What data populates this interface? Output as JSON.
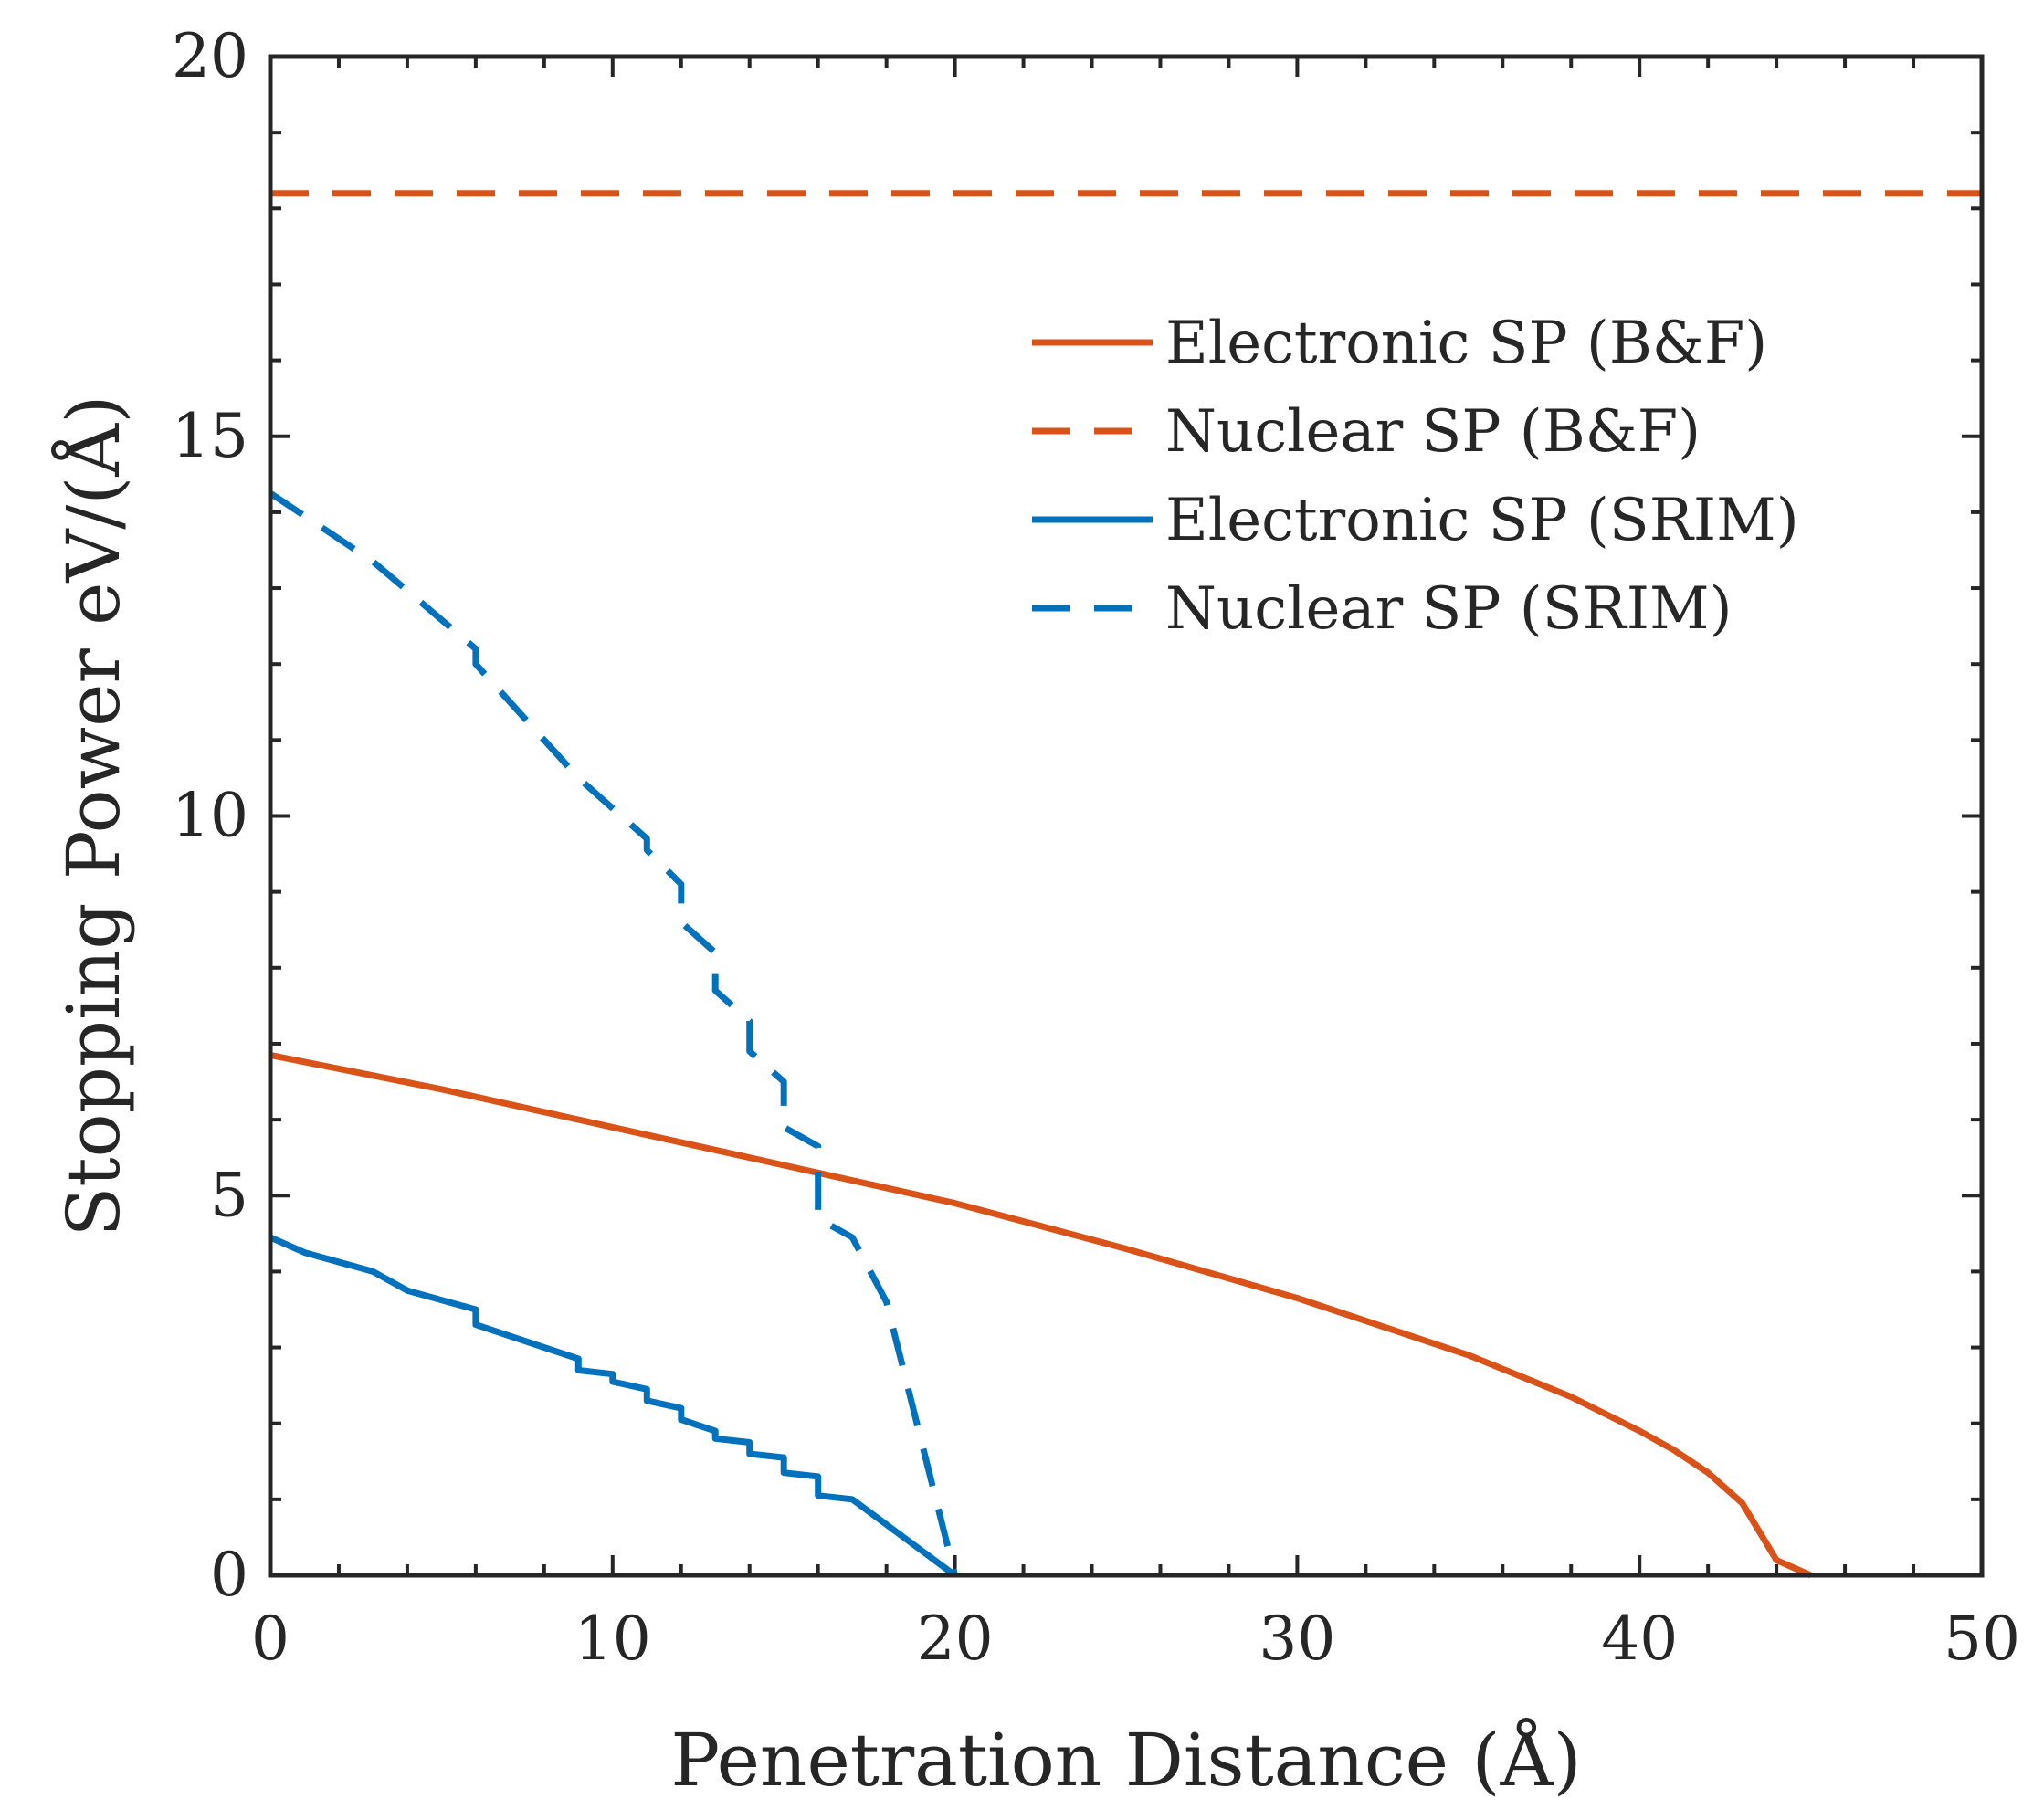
{
  "chart_data": {
    "type": "line",
    "title": "",
    "xlabel": "Penetration Distance (Å)",
    "ylabel": "Stopping Power eV/(Å)",
    "xlim": [
      0,
      50
    ],
    "ylim": [
      0,
      20
    ],
    "xticks": [
      0,
      10,
      20,
      30,
      40,
      50
    ],
    "xtick_labels": [
      "0",
      "10",
      "20",
      "30",
      "40",
      "50"
    ],
    "yticks": [
      0,
      5,
      10,
      15,
      20
    ],
    "ytick_labels": [
      "0",
      "5",
      "10",
      "15",
      "20"
    ],
    "grid": false,
    "legend_position": "top-right",
    "series": [
      {
        "name": "Electronic SP (B&F)",
        "color": "#D95319",
        "style": "solid",
        "x": [
          0,
          5,
          10,
          15,
          20,
          25,
          30,
          35,
          38,
          40,
          41,
          42,
          43,
          44,
          45
        ],
        "y": [
          6.85,
          6.4,
          5.9,
          5.4,
          4.9,
          4.3,
          3.65,
          2.9,
          2.35,
          1.9,
          1.65,
          1.35,
          0.95,
          0.2,
          0.0
        ]
      },
      {
        "name": "Nuclear SP (B&F)",
        "color": "#D95319",
        "style": "dashed",
        "x": [
          0,
          50
        ],
        "y": [
          18.2,
          18.2
        ]
      },
      {
        "name": "Electronic SP (SRIM)",
        "color": "#0072BD",
        "style": "solid",
        "x": [
          0,
          1,
          3,
          4,
          6,
          6,
          9,
          9,
          10,
          10,
          11,
          11,
          12,
          12,
          13,
          13,
          14,
          14,
          15,
          15,
          16,
          16,
          17,
          20
        ],
        "y": [
          4.45,
          4.25,
          4.0,
          3.75,
          3.5,
          3.3,
          2.85,
          2.7,
          2.65,
          2.55,
          2.45,
          2.3,
          2.2,
          2.05,
          1.9,
          1.8,
          1.75,
          1.6,
          1.55,
          1.35,
          1.3,
          1.05,
          1.0,
          0.0
        ]
      },
      {
        "name": "Nuclear SP (SRIM)",
        "color": "#0072BD",
        "style": "dashed",
        "x": [
          0,
          3,
          6,
          6,
          9,
          10,
          11,
          11,
          12,
          12,
          13,
          13,
          14,
          14,
          15,
          15,
          16,
          16,
          17,
          18,
          20
        ],
        "y": [
          14.25,
          13.35,
          12.2,
          12.0,
          10.5,
          10.1,
          9.7,
          9.55,
          9.1,
          8.6,
          8.2,
          7.7,
          7.3,
          6.9,
          6.5,
          5.9,
          5.65,
          4.7,
          4.45,
          3.6,
          0.0
        ]
      }
    ]
  }
}
